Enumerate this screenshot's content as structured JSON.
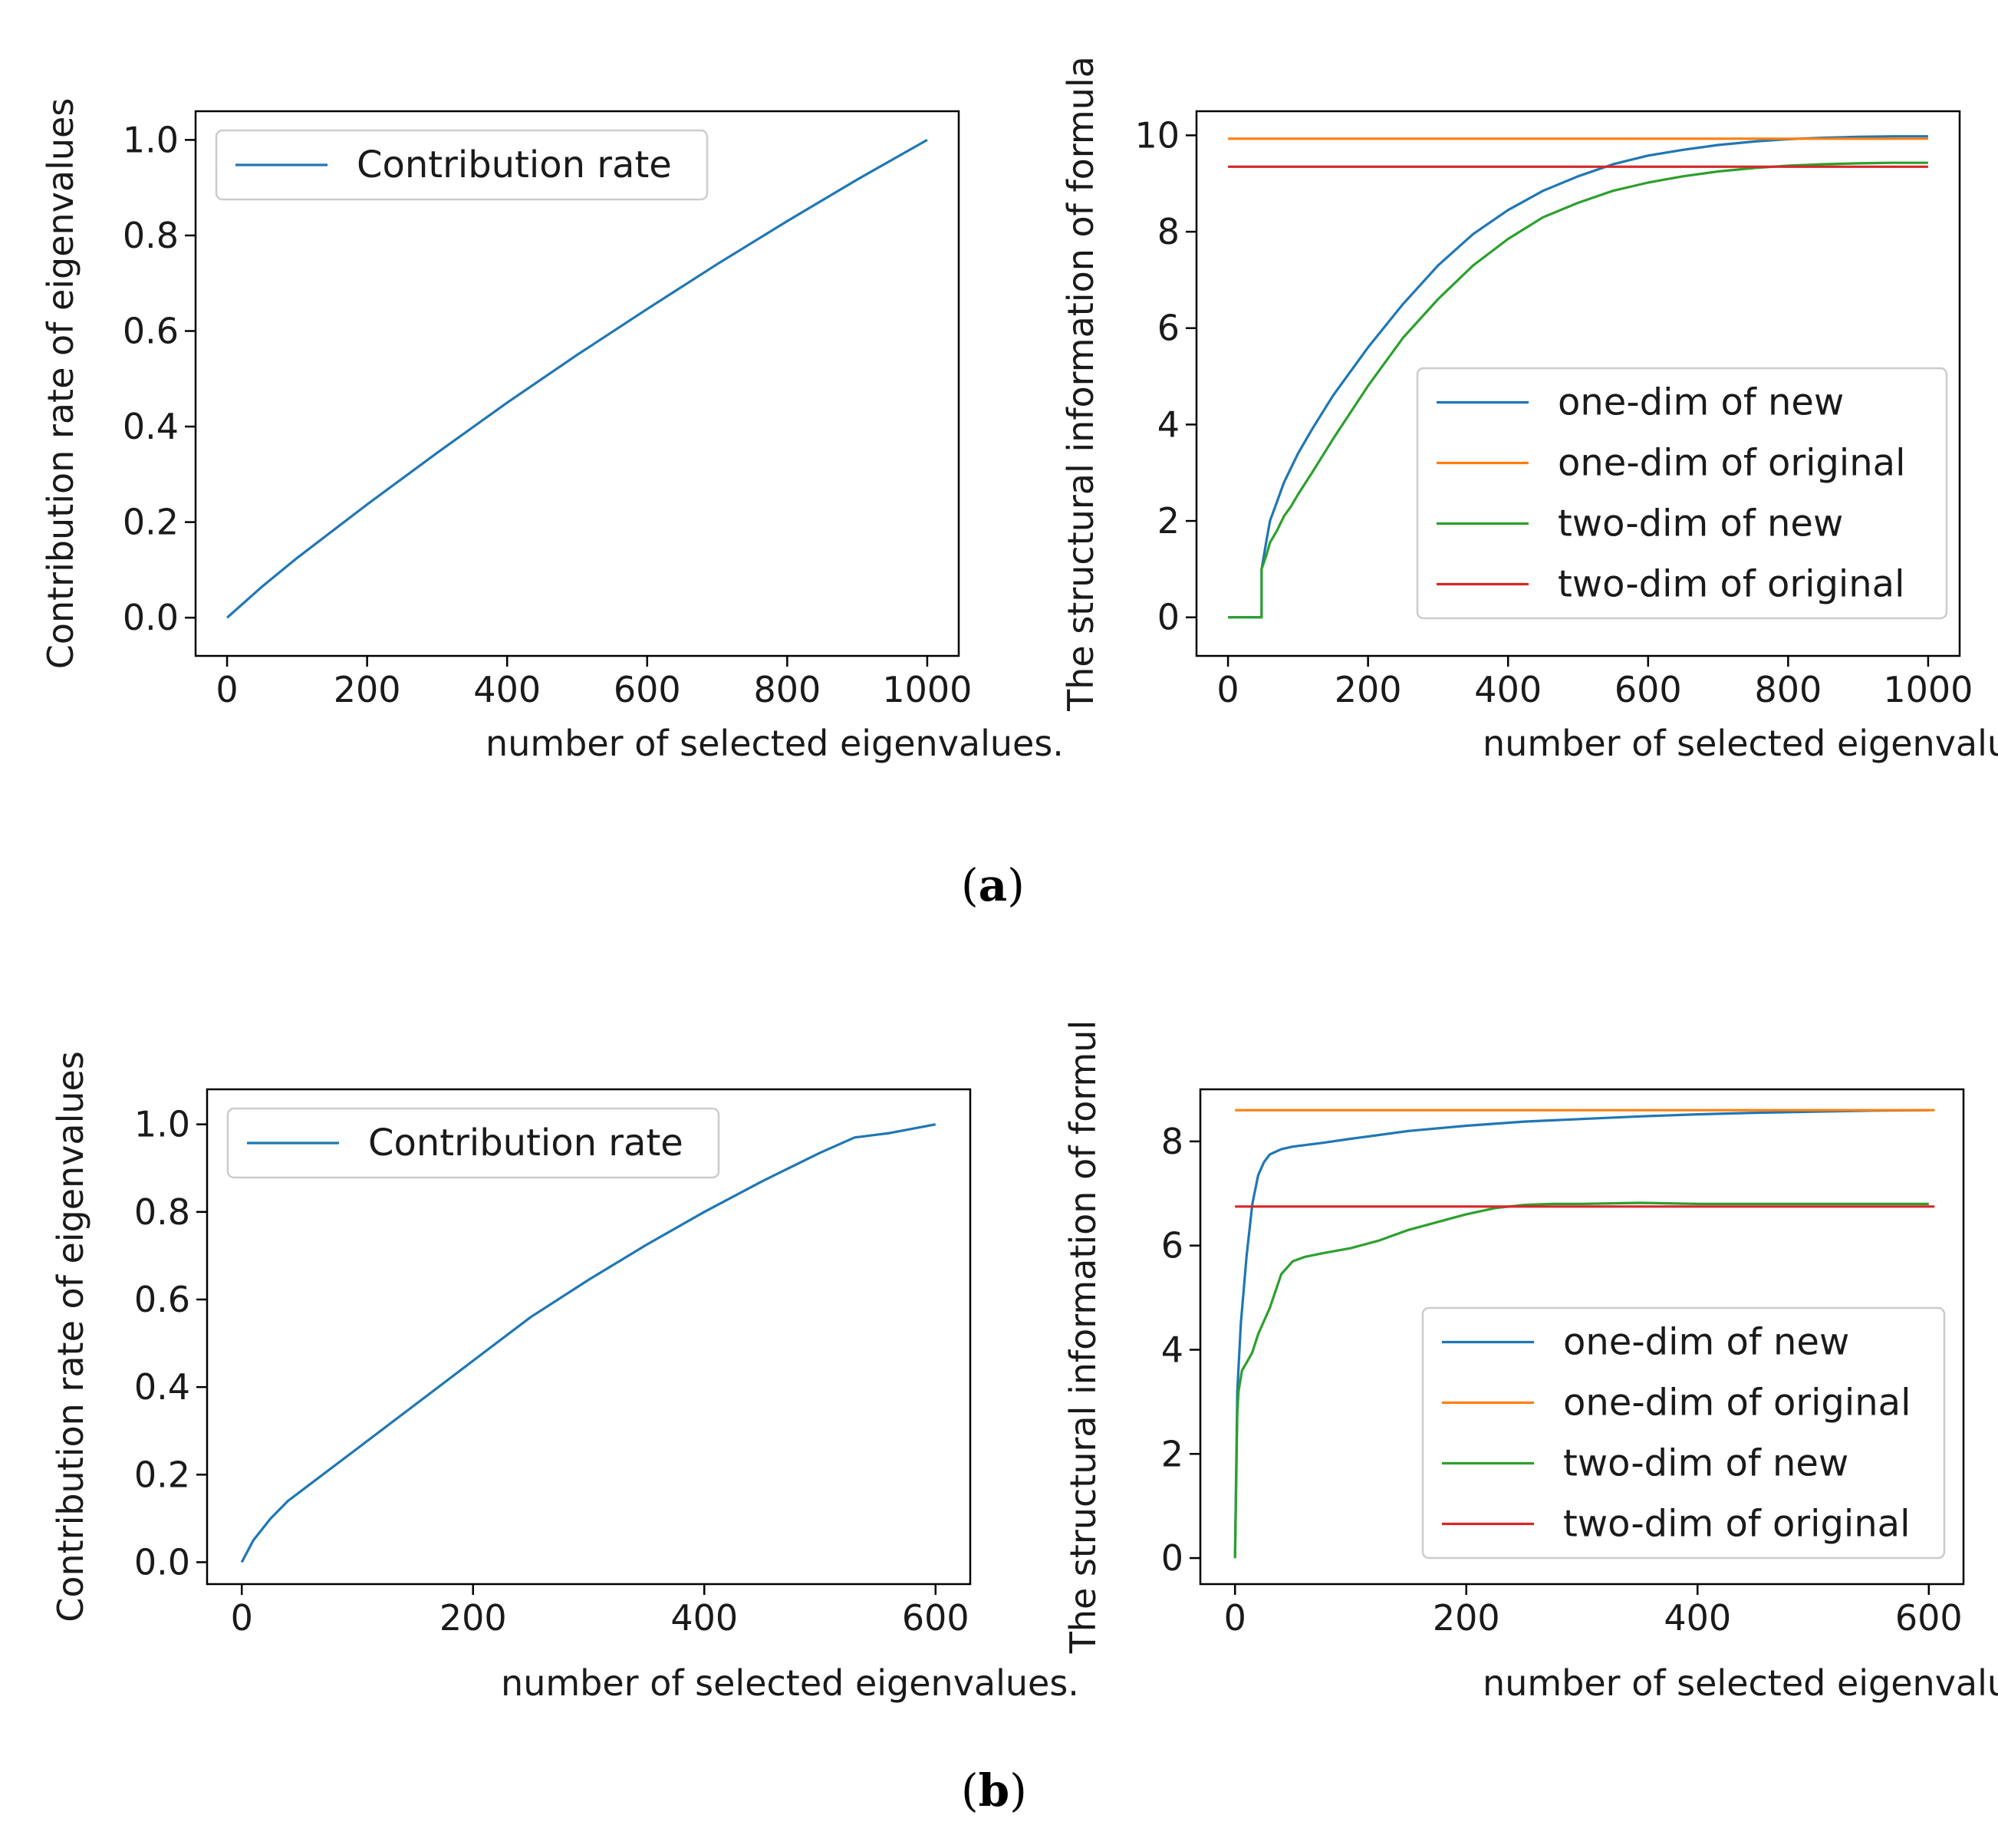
{
  "panels": [
    {
      "label": "(a)",
      "label_letter": "a"
    },
    {
      "label": "(b)",
      "label_letter": "b"
    }
  ],
  "chart_data": [
    {
      "type": "line",
      "id": "a-left",
      "xlabel": "number of selected eigenvalues.",
      "ylabel": "Contribution rate of eigenvalues",
      "xlim": [
        -45,
        1045
      ],
      "ylim": [
        -0.08,
        1.06
      ],
      "xticks": [
        0,
        200,
        400,
        600,
        800,
        1000
      ],
      "xtick_labels": [
        "0",
        "200",
        "400",
        "600",
        "800",
        "1000"
      ],
      "yticks": [
        0.0,
        0.2,
        0.4,
        0.6,
        0.8,
        1.0
      ],
      "ytick_labels": [
        "0.0",
        "0.2",
        "0.4",
        "0.6",
        "0.8",
        "1.0"
      ],
      "legend_position": "top-left",
      "series": [
        {
          "name": "Contribution rate",
          "color": "#1f77b4",
          "x": [
            0,
            50,
            100,
            200,
            300,
            400,
            500,
            600,
            700,
            800,
            900,
            1000
          ],
          "y": [
            0.0,
            0.065,
            0.125,
            0.237,
            0.345,
            0.45,
            0.55,
            0.646,
            0.74,
            0.83,
            0.917,
            1.0
          ]
        }
      ]
    },
    {
      "type": "line",
      "id": "a-right",
      "xlabel": "number of selected eigenvalues.",
      "ylabel": "The structural information of formula",
      "xlim": [
        -45,
        1045
      ],
      "ylim": [
        -0.8,
        10.5
      ],
      "xticks": [
        0,
        200,
        400,
        600,
        800,
        1000
      ],
      "xtick_labels": [
        "0",
        "200",
        "400",
        "600",
        "800",
        "1000"
      ],
      "yticks": [
        0,
        2,
        4,
        6,
        8,
        10
      ],
      "ytick_labels": [
        "0",
        "2",
        "4",
        "6",
        "8",
        "10"
      ],
      "legend_position": "lower-right",
      "series": [
        {
          "name": "one-dim of new",
          "color": "#1f77b4",
          "x": [
            0,
            48,
            48,
            55,
            60,
            70,
            80,
            90,
            100,
            120,
            150,
            200,
            250,
            300,
            350,
            400,
            450,
            500,
            550,
            600,
            650,
            700,
            750,
            800,
            850,
            900,
            950,
            1000
          ],
          "y": [
            0,
            0,
            1.0,
            1.6,
            2.0,
            2.4,
            2.8,
            3.1,
            3.4,
            3.9,
            4.6,
            5.6,
            6.5,
            7.3,
            7.95,
            8.45,
            8.85,
            9.15,
            9.4,
            9.58,
            9.7,
            9.8,
            9.87,
            9.92,
            9.95,
            9.97,
            9.98,
            9.98
          ]
        },
        {
          "name": "one-dim of original",
          "color": "#ff7f0e",
          "x": [
            0,
            1000
          ],
          "y": [
            9.93,
            9.93
          ]
        },
        {
          "name": "two-dim of new",
          "color": "#2ca02c",
          "x": [
            0,
            48,
            48,
            55,
            60,
            70,
            80,
            90,
            100,
            120,
            150,
            200,
            250,
            300,
            350,
            400,
            450,
            500,
            550,
            600,
            650,
            700,
            750,
            800,
            850,
            900,
            950,
            1000
          ],
          "y": [
            0,
            0,
            1.0,
            1.3,
            1.55,
            1.8,
            2.1,
            2.3,
            2.55,
            3.0,
            3.7,
            4.8,
            5.8,
            6.6,
            7.3,
            7.85,
            8.3,
            8.6,
            8.85,
            9.02,
            9.15,
            9.25,
            9.32,
            9.37,
            9.4,
            9.42,
            9.43,
            9.43
          ]
        },
        {
          "name": "two-dim of original",
          "color": "#d62728",
          "x": [
            0,
            1000
          ],
          "y": [
            9.35,
            9.35
          ]
        }
      ]
    },
    {
      "type": "line",
      "id": "b-left",
      "xlabel": "number of selected eigenvalues.",
      "ylabel": "Contribution rate of eigenvalues",
      "xlim": [
        -30,
        630
      ],
      "ylim": [
        -0.05,
        1.08
      ],
      "xticks": [
        0,
        200,
        400,
        600
      ],
      "xtick_labels": [
        "0",
        "200",
        "400",
        "600"
      ],
      "yticks": [
        0.0,
        0.2,
        0.4,
        0.6,
        0.8,
        1.0
      ],
      "ytick_labels": [
        "0.0",
        "0.2",
        "0.4",
        "0.6",
        "0.8",
        "1.0"
      ],
      "legend_position": "top-left",
      "series": [
        {
          "name": "Contribution rate",
          "color": "#1f77b4",
          "x": [
            0,
            10,
            25,
            40,
            60,
            100,
            150,
            200,
            250,
            300,
            350,
            400,
            450,
            500,
            530,
            560,
            600
          ],
          "y": [
            0.0,
            0.05,
            0.1,
            0.14,
            0.18,
            0.26,
            0.36,
            0.46,
            0.56,
            0.645,
            0.725,
            0.8,
            0.87,
            0.935,
            0.97,
            0.98,
            1.0
          ]
        }
      ]
    },
    {
      "type": "line",
      "id": "b-right",
      "xlabel": "number of selected eigenvalues.",
      "ylabel": "The structural information of formul",
      "xlim": [
        -30,
        630
      ],
      "ylim": [
        -0.5,
        9.0
      ],
      "xticks": [
        0,
        200,
        400,
        600
      ],
      "xtick_labels": [
        "0",
        "200",
        "400",
        "600"
      ],
      "yticks": [
        0,
        2,
        4,
        6,
        8
      ],
      "ytick_labels": [
        "0",
        "2",
        "4",
        "6",
        "8"
      ],
      "legend_position": "lower-right",
      "series": [
        {
          "name": "one-dim of new",
          "color": "#1f77b4",
          "x": [
            0,
            2,
            5,
            10,
            15,
            20,
            25,
            30,
            40,
            50,
            75,
            100,
            150,
            200,
            250,
            300,
            350,
            400,
            450,
            500,
            550,
            600
          ],
          "y": [
            0,
            3.2,
            4.5,
            5.8,
            6.8,
            7.35,
            7.6,
            7.75,
            7.85,
            7.9,
            7.97,
            8.05,
            8.2,
            8.3,
            8.38,
            8.43,
            8.48,
            8.52,
            8.55,
            8.57,
            8.59,
            8.6
          ]
        },
        {
          "name": "one-dim of original",
          "color": "#ff7f0e",
          "x": [
            0,
            605
          ],
          "y": [
            8.6,
            8.6
          ]
        },
        {
          "name": "two-dim of new",
          "color": "#2ca02c",
          "x": [
            0,
            2,
            3,
            6,
            10,
            15,
            20,
            30,
            40,
            50,
            60,
            75,
            100,
            125,
            150,
            175,
            200,
            225,
            250,
            275,
            300,
            350,
            400,
            450,
            500,
            550,
            600
          ],
          "y": [
            0,
            2.8,
            3.2,
            3.6,
            3.75,
            3.95,
            4.3,
            4.8,
            5.45,
            5.7,
            5.78,
            5.85,
            5.95,
            6.1,
            6.3,
            6.45,
            6.6,
            6.72,
            6.78,
            6.8,
            6.8,
            6.82,
            6.8,
            6.8,
            6.8,
            6.8,
            6.8
          ]
        },
        {
          "name": "two-dim of original",
          "color": "#d62728",
          "x": [
            0,
            605
          ],
          "y": [
            6.75,
            6.75
          ]
        }
      ]
    }
  ]
}
